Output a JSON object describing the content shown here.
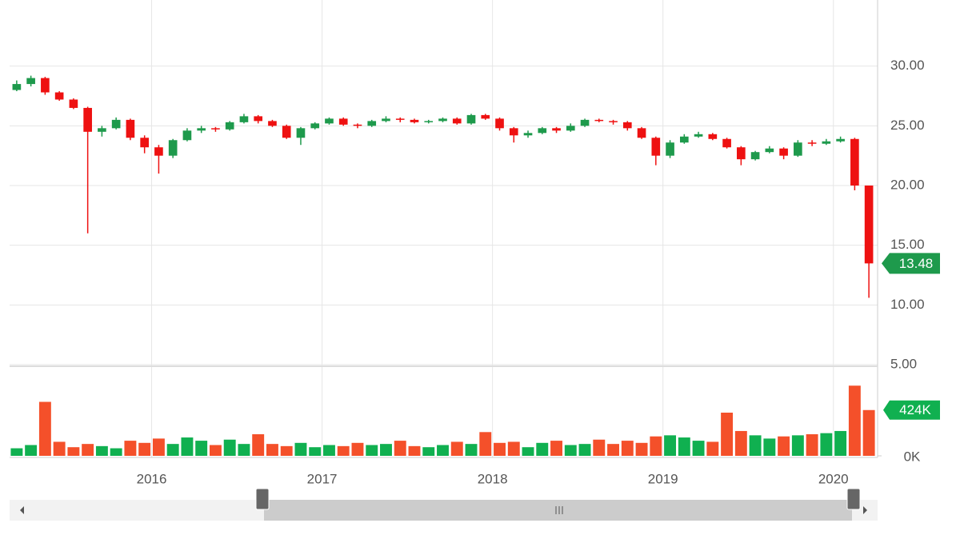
{
  "chart_data": {
    "type": "candlestick",
    "x": [
      "2015-03",
      "2015-04",
      "2015-05",
      "2015-06",
      "2015-07",
      "2015-08",
      "2015-09",
      "2015-10",
      "2015-11",
      "2015-12",
      "2016-01",
      "2016-02",
      "2016-03",
      "2016-04",
      "2016-05",
      "2016-06",
      "2016-07",
      "2016-08",
      "2016-09",
      "2016-10",
      "2016-11",
      "2016-12",
      "2017-01",
      "2017-02",
      "2017-03",
      "2017-04",
      "2017-05",
      "2017-06",
      "2017-07",
      "2017-08",
      "2017-09",
      "2017-10",
      "2017-11",
      "2017-12",
      "2018-01",
      "2018-02",
      "2018-03",
      "2018-04",
      "2018-05",
      "2018-06",
      "2018-07",
      "2018-08",
      "2018-09",
      "2018-10",
      "2018-11",
      "2018-12",
      "2019-01",
      "2019-02",
      "2019-03",
      "2019-04",
      "2019-05",
      "2019-06",
      "2019-07",
      "2019-08",
      "2019-09",
      "2019-10",
      "2019-11",
      "2019-12",
      "2020-01",
      "2020-02",
      "2020-03"
    ],
    "open": [
      28.0,
      28.5,
      29.0,
      27.8,
      27.2,
      26.5,
      24.5,
      24.8,
      25.5,
      24.0,
      23.2,
      22.5,
      23.8,
      24.6,
      24.8,
      24.7,
      25.3,
      25.8,
      25.4,
      25.0,
      24.0,
      24.8,
      25.2,
      25.6,
      25.1,
      25.0,
      25.4,
      25.6,
      25.5,
      25.3,
      25.4,
      25.6,
      25.2,
      25.9,
      25.6,
      24.8,
      24.2,
      24.4,
      24.8,
      24.6,
      25.0,
      25.5,
      25.4,
      25.3,
      24.8,
      24.0,
      22.5,
      23.6,
      24.1,
      24.3,
      23.9,
      23.2,
      22.2,
      22.8,
      23.1,
      22.5,
      23.6,
      23.5,
      23.7,
      23.9,
      20.0
    ],
    "high": [
      28.8,
      29.2,
      29.1,
      27.9,
      27.3,
      26.6,
      25.0,
      25.7,
      25.6,
      24.2,
      23.4,
      23.9,
      24.8,
      25.0,
      24.9,
      25.4,
      26.0,
      25.9,
      25.5,
      25.1,
      24.9,
      25.3,
      25.7,
      25.7,
      25.2,
      25.5,
      25.8,
      25.7,
      25.6,
      25.5,
      25.7,
      25.7,
      26.0,
      26.0,
      25.7,
      24.9,
      24.6,
      24.9,
      24.9,
      25.2,
      25.6,
      25.6,
      25.5,
      25.4,
      24.9,
      24.1,
      23.8,
      24.3,
      24.5,
      24.4,
      24.0,
      23.3,
      22.9,
      23.3,
      23.2,
      23.8,
      23.8,
      23.9,
      24.1,
      24.0,
      20.0
    ],
    "low": [
      27.9,
      28.3,
      27.6,
      27.1,
      26.4,
      16.0,
      24.1,
      24.7,
      23.8,
      22.7,
      21.0,
      22.3,
      23.7,
      24.4,
      24.5,
      24.6,
      25.2,
      25.2,
      24.9,
      23.9,
      23.4,
      24.7,
      25.1,
      25.0,
      24.8,
      24.9,
      25.3,
      25.3,
      25.2,
      25.2,
      25.3,
      25.1,
      25.1,
      25.5,
      24.6,
      23.6,
      24.0,
      24.3,
      24.4,
      24.5,
      24.9,
      25.3,
      25.1,
      24.6,
      23.9,
      21.7,
      22.3,
      23.5,
      24.0,
      23.8,
      23.1,
      21.7,
      22.1,
      22.7,
      22.2,
      22.4,
      23.3,
      23.4,
      23.6,
      19.6,
      10.6
    ],
    "close": [
      28.5,
      29.0,
      27.8,
      27.2,
      26.5,
      24.5,
      24.8,
      25.5,
      24.0,
      23.2,
      22.5,
      23.8,
      24.6,
      24.8,
      24.7,
      25.3,
      25.8,
      25.4,
      25.0,
      24.0,
      24.8,
      25.2,
      25.6,
      25.1,
      25.0,
      25.4,
      25.6,
      25.5,
      25.3,
      25.4,
      25.6,
      25.2,
      25.9,
      25.6,
      24.8,
      24.2,
      24.4,
      24.8,
      24.6,
      25.0,
      25.5,
      25.4,
      25.3,
      24.8,
      24.0,
      22.5,
      23.6,
      24.1,
      24.3,
      23.9,
      23.2,
      22.2,
      22.8,
      23.1,
      22.5,
      23.6,
      23.5,
      23.7,
      23.9,
      20.0,
      13.48
    ],
    "volume": [
      70000,
      100000,
      500000,
      130000,
      80000,
      110000,
      90000,
      70000,
      140000,
      120000,
      160000,
      110000,
      170000,
      140000,
      100000,
      150000,
      110000,
      200000,
      110000,
      90000,
      120000,
      80000,
      100000,
      90000,
      120000,
      100000,
      110000,
      140000,
      90000,
      80000,
      100000,
      130000,
      110000,
      220000,
      120000,
      130000,
      80000,
      120000,
      140000,
      100000,
      110000,
      150000,
      110000,
      140000,
      120000,
      180000,
      190000,
      170000,
      140000,
      130000,
      400000,
      230000,
      190000,
      160000,
      180000,
      190000,
      200000,
      210000,
      230000,
      650000,
      424000
    ],
    "xlim": [
      "2015-03",
      "2020-04"
    ],
    "xticks": [
      {
        "value": "2016-01",
        "label": "2016"
      },
      {
        "value": "2017-01",
        "label": "2017"
      },
      {
        "value": "2018-01",
        "label": "2018"
      },
      {
        "value": "2019-01",
        "label": "2019"
      },
      {
        "value": "2020-01",
        "label": "2020"
      }
    ],
    "ylim": [
      5,
      35
    ],
    "yticks": [
      {
        "value": 5,
        "label": "5.00"
      },
      {
        "value": 10,
        "label": "10.00"
      },
      {
        "value": 15,
        "label": "15.00"
      },
      {
        "value": 20,
        "label": "20.00"
      },
      {
        "value": 25,
        "label": "25.00"
      },
      {
        "value": 30,
        "label": "30.00"
      }
    ],
    "volume_ylim": [
      0,
      800000
    ],
    "volume_yticks": [
      {
        "value": 0,
        "label": "0K"
      }
    ],
    "last_close": 13.48,
    "last_volume": {
      "value": 424000,
      "label": "424K"
    },
    "up_color": "#1e9a4c",
    "down_color": "#ee1111",
    "volume_up_color": "#10b050",
    "volume_down_color": "#f4502a",
    "grid": true
  }
}
